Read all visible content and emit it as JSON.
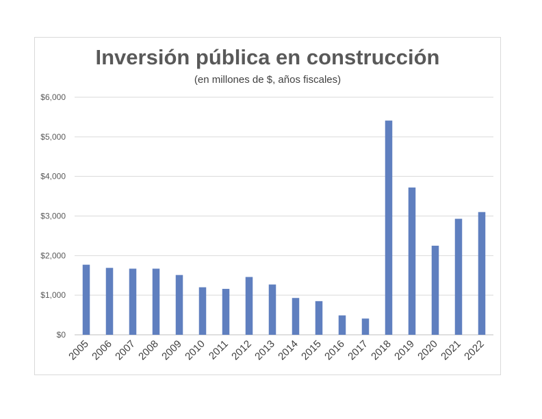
{
  "chart_data": {
    "type": "bar",
    "title": "Inversión pública en construcción",
    "subtitle": "(en millones de $, años fiscales)",
    "xlabel": "",
    "ylabel": "",
    "categories": [
      "2005",
      "2006",
      "2007",
      "2008",
      "2009",
      "2010",
      "2011",
      "2012",
      "2013",
      "2014",
      "2015",
      "2016",
      "2017",
      "2018",
      "2019",
      "2020",
      "2021",
      "2022"
    ],
    "values": [
      1770,
      1690,
      1670,
      1670,
      1510,
      1200,
      1160,
      1460,
      1270,
      930,
      850,
      490,
      410,
      5410,
      3720,
      2250,
      2930,
      3100
    ],
    "ylim": [
      0,
      6000
    ],
    "yticks": [
      0,
      1000,
      2000,
      3000,
      4000,
      5000,
      6000
    ],
    "ytick_labels": [
      "$0",
      "$1,000",
      "$2,000",
      "$3,000",
      "$4,000",
      "$5,000",
      "$6,000"
    ],
    "grid": true,
    "legend": "none",
    "bar_color": "#5f7fbf",
    "grid_color": "#d9d9d9"
  }
}
